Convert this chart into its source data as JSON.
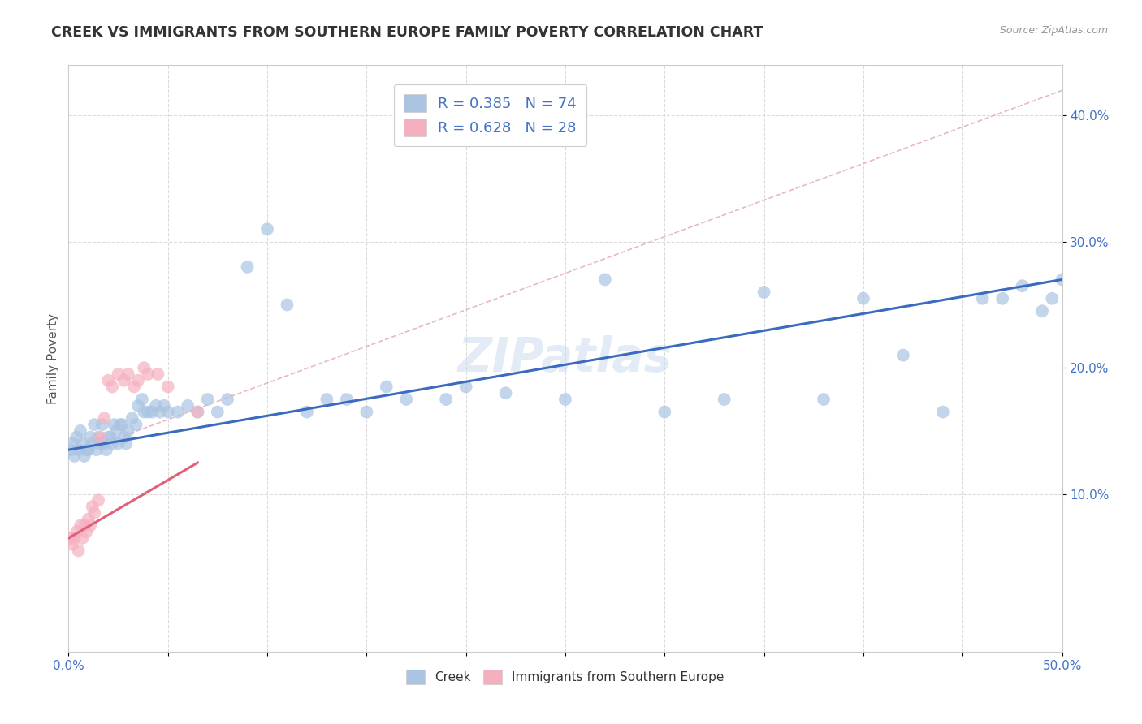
{
  "title": "CREEK VS IMMIGRANTS FROM SOUTHERN EUROPE FAMILY POVERTY CORRELATION CHART",
  "source": "Source: ZipAtlas.com",
  "ylabel": "Family Poverty",
  "xlim": [
    0.0,
    0.5
  ],
  "ylim": [
    -0.025,
    0.44
  ],
  "creek_R": 0.385,
  "creek_N": 74,
  "imm_R": 0.628,
  "imm_N": 28,
  "creek_color": "#aac4e2",
  "creek_line_color": "#3a6bbf",
  "imm_color": "#f5b0c0",
  "imm_line_color": "#e0607a",
  "diag_color": "#e8b0b8",
  "watermark": "ZIPatlas",
  "background_color": "#ffffff",
  "grid_color": "#d8d8d8",
  "creek_x": [
    0.001,
    0.002,
    0.003,
    0.004,
    0.005,
    0.006,
    0.007,
    0.008,
    0.009,
    0.01,
    0.011,
    0.012,
    0.013,
    0.014,
    0.015,
    0.016,
    0.017,
    0.018,
    0.019,
    0.02,
    0.021,
    0.022,
    0.023,
    0.024,
    0.025,
    0.026,
    0.027,
    0.028,
    0.029,
    0.03,
    0.032,
    0.034,
    0.035,
    0.037,
    0.038,
    0.04,
    0.042,
    0.044,
    0.046,
    0.048,
    0.05,
    0.055,
    0.06,
    0.065,
    0.07,
    0.075,
    0.08,
    0.09,
    0.1,
    0.11,
    0.12,
    0.13,
    0.14,
    0.15,
    0.16,
    0.17,
    0.19,
    0.2,
    0.22,
    0.25,
    0.27,
    0.3,
    0.33,
    0.35,
    0.38,
    0.4,
    0.42,
    0.44,
    0.46,
    0.47,
    0.48,
    0.49,
    0.495,
    0.5
  ],
  "creek_y": [
    0.135,
    0.14,
    0.13,
    0.145,
    0.135,
    0.15,
    0.14,
    0.13,
    0.135,
    0.135,
    0.145,
    0.14,
    0.155,
    0.135,
    0.145,
    0.14,
    0.155,
    0.14,
    0.135,
    0.145,
    0.145,
    0.14,
    0.155,
    0.15,
    0.14,
    0.155,
    0.155,
    0.145,
    0.14,
    0.15,
    0.16,
    0.155,
    0.17,
    0.175,
    0.165,
    0.165,
    0.165,
    0.17,
    0.165,
    0.17,
    0.165,
    0.165,
    0.17,
    0.165,
    0.175,
    0.165,
    0.175,
    0.28,
    0.31,
    0.25,
    0.165,
    0.175,
    0.175,
    0.165,
    0.185,
    0.175,
    0.175,
    0.185,
    0.18,
    0.175,
    0.27,
    0.165,
    0.175,
    0.26,
    0.175,
    0.255,
    0.21,
    0.165,
    0.255,
    0.255,
    0.265,
    0.245,
    0.255,
    0.27
  ],
  "imm_x": [
    0.001,
    0.002,
    0.003,
    0.004,
    0.005,
    0.006,
    0.007,
    0.008,
    0.009,
    0.01,
    0.011,
    0.012,
    0.013,
    0.015,
    0.016,
    0.018,
    0.02,
    0.022,
    0.025,
    0.028,
    0.03,
    0.033,
    0.035,
    0.038,
    0.04,
    0.045,
    0.05,
    0.065
  ],
  "imm_y": [
    0.065,
    0.06,
    0.065,
    0.07,
    0.055,
    0.075,
    0.065,
    0.075,
    0.07,
    0.08,
    0.075,
    0.09,
    0.085,
    0.095,
    0.145,
    0.16,
    0.19,
    0.185,
    0.195,
    0.19,
    0.195,
    0.185,
    0.19,
    0.2,
    0.195,
    0.195,
    0.185,
    0.165
  ]
}
